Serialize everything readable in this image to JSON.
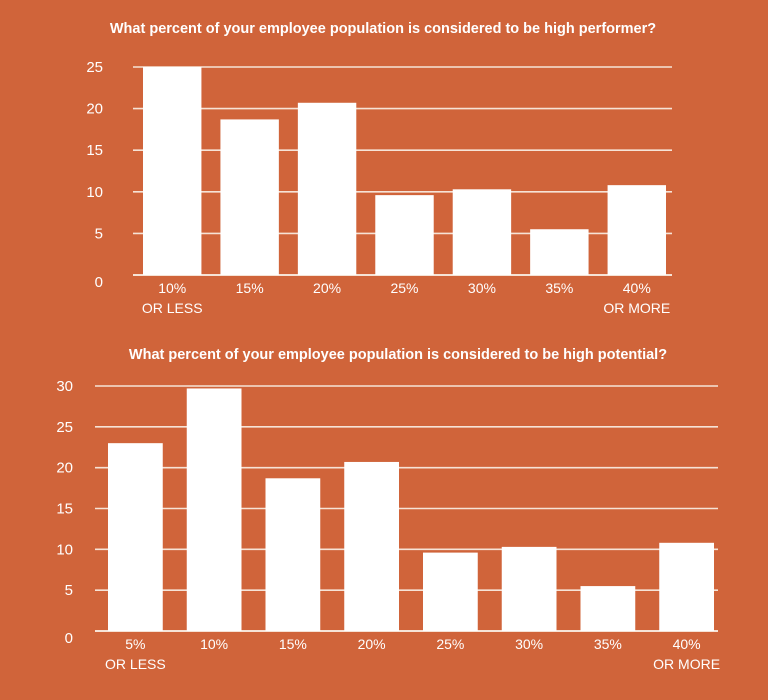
{
  "background_color": "#D0643A",
  "bar_color": "#FFFFFF",
  "chart_data": [
    {
      "type": "bar",
      "title": "What percent of your employee population is considered to be high performer?",
      "categories": [
        [
          "10%",
          "OR LESS"
        ],
        [
          "15%"
        ],
        [
          "20%"
        ],
        [
          "25%"
        ],
        [
          "30%"
        ],
        [
          "35%"
        ],
        [
          "40%",
          "OR MORE"
        ]
      ],
      "values": [
        25,
        18.7,
        20.7,
        9.6,
        10.3,
        5.5,
        10.8
      ],
      "ylim": [
        0,
        25
      ],
      "yticks": [
        "0",
        "5",
        "10",
        "15",
        "20",
        "25"
      ],
      "grid": true
    },
    {
      "type": "bar",
      "title": "What percent of your employee population is considered to be high potential?",
      "categories": [
        [
          "5%",
          "OR LESS"
        ],
        [
          "10%"
        ],
        [
          "15%"
        ],
        [
          "20%"
        ],
        [
          "25%"
        ],
        [
          "30%"
        ],
        [
          "35%"
        ],
        [
          "40%",
          "OR MORE"
        ]
      ],
      "values": [
        23.0,
        29.7,
        18.7,
        20.7,
        9.6,
        10.3,
        5.5,
        10.8
      ],
      "ylim": [
        0,
        30
      ],
      "yticks": [
        "0",
        "5",
        "10",
        "15",
        "20",
        "25",
        "30"
      ],
      "grid": true
    }
  ]
}
